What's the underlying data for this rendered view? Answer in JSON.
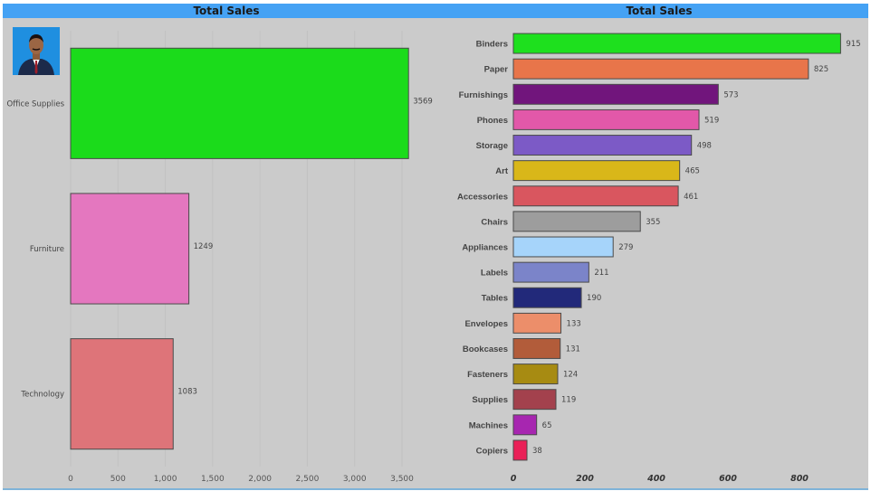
{
  "chart_data": [
    {
      "type": "bar",
      "orientation": "horizontal",
      "title": "Total Sales",
      "categories": [
        "Office Supplies",
        "Furniture",
        "Technology"
      ],
      "values": [
        3569,
        1249,
        1083
      ],
      "colors": [
        "#1bdb1b",
        "#e477bf",
        "#de7479"
      ],
      "xlim": [
        0,
        3500
      ],
      "xticks": [
        0,
        500,
        1000,
        1500,
        2000,
        2500,
        3000,
        3500
      ],
      "xtick_labels": [
        "0",
        "500",
        "1,000",
        "1,500",
        "2,000",
        "2,500",
        "3,000",
        "3,500"
      ],
      "data_labels": [
        "3569",
        "1249",
        "1083"
      ],
      "grid": true,
      "legend": "none"
    },
    {
      "type": "bar",
      "orientation": "horizontal",
      "title": "Total Sales",
      "categories": [
        "Binders",
        "Paper",
        "Furnishings",
        "Phones",
        "Storage",
        "Art",
        "Accessories",
        "Chairs",
        "Appliances",
        "Labels",
        "Tables",
        "Envelopes",
        "Bookcases",
        "Fasteners",
        "Supplies",
        "Machines",
        "Copiers"
      ],
      "values": [
        915,
        825,
        573,
        519,
        498,
        465,
        461,
        355,
        279,
        211,
        190,
        133,
        131,
        124,
        119,
        65,
        38
      ],
      "colors": [
        "#1ee01e",
        "#e8754a",
        "#71157c",
        "#e258a9",
        "#7c5ac6",
        "#d9b719",
        "#d9565f",
        "#9d9d9d",
        "#a6d4fa",
        "#7b84c9",
        "#22297a",
        "#ec8e6a",
        "#b25c3a",
        "#a78b12",
        "#a3414d",
        "#a726b0",
        "#ea2057"
      ],
      "xlim": [
        0,
        900
      ],
      "xticks": [
        0,
        200,
        400,
        600,
        800
      ],
      "xtick_labels": [
        "0",
        "200",
        "400",
        "600",
        "800"
      ],
      "data_labels": [
        "915",
        "825",
        "573",
        "519",
        "498",
        "465",
        "461",
        "355",
        "279",
        "211",
        "190",
        "133",
        "131",
        "124",
        "119",
        "65",
        "38"
      ],
      "grid": false,
      "legend": "none"
    }
  ],
  "photo": {
    "icon": "person-portrait-icon",
    "bg_color": "#1f8fe0"
  }
}
